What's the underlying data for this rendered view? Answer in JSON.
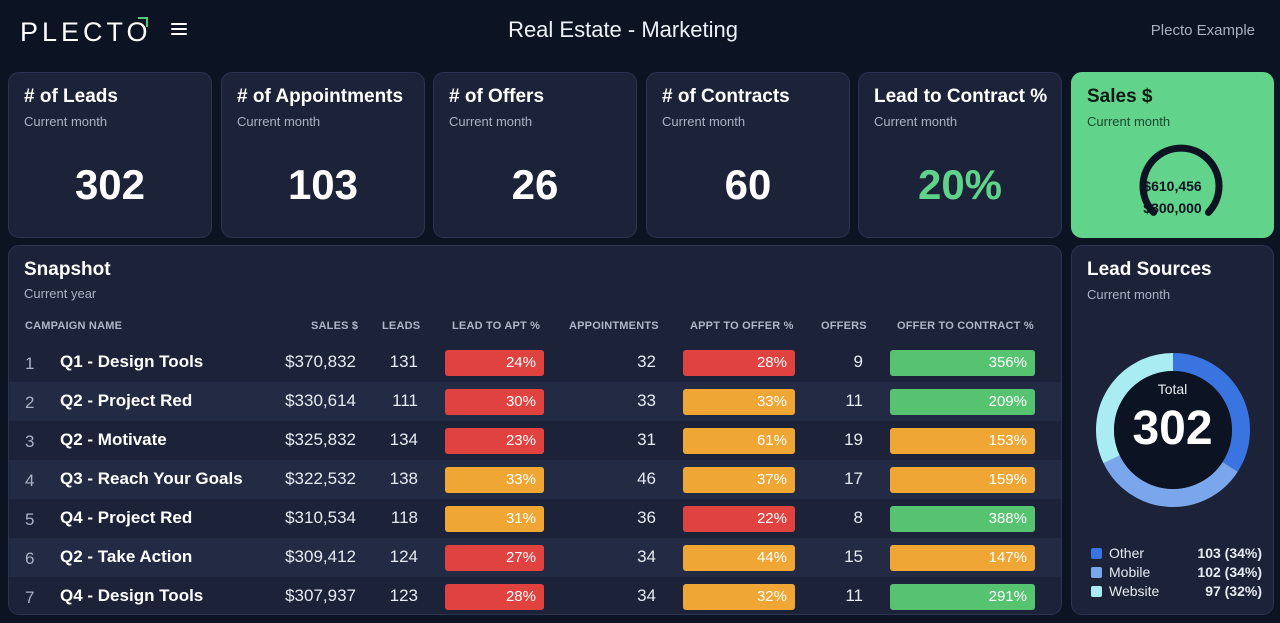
{
  "header": {
    "logo": "PLECTO",
    "title": "Real Estate - Marketing",
    "account": "Plecto Example"
  },
  "kpis": [
    {
      "title": "# of Leads",
      "subtitle": "Current month",
      "value": "302"
    },
    {
      "title": "# of Appointments",
      "subtitle": "Current month",
      "value": "103"
    },
    {
      "title": "# of Offers",
      "subtitle": "Current month",
      "value": "26"
    },
    {
      "title": "# of Contracts",
      "subtitle": "Current month",
      "value": "60"
    },
    {
      "title": "Lead to Contract %",
      "subtitle": "Current month",
      "value": "20%"
    }
  ],
  "sales": {
    "title": "Sales $",
    "subtitle": "Current month",
    "value": "$610,456",
    "target": "$300,000",
    "progress": 1.0
  },
  "snapshot": {
    "title": "Snapshot",
    "subtitle": "Current year",
    "columns": [
      "CAMPAIGN NAME",
      "SALES $",
      "LEADS",
      "LEAD TO APT %",
      "APPOINTMENTS",
      "APPT TO OFFER %",
      "OFFERS",
      "OFFER TO CONTRACT %"
    ],
    "rows": [
      {
        "rank": "1",
        "name": "Q1 - Design Tools",
        "sales": "$370,832",
        "leads": "131",
        "lead_to_apt": "24%",
        "lead_to_apt_status": "red",
        "appointments": "32",
        "appt_to_offer": "28%",
        "appt_to_offer_status": "red",
        "offers": "9",
        "offer_to_contract": "356%",
        "offer_to_contract_status": "green"
      },
      {
        "rank": "2",
        "name": "Q2 - Project Red",
        "sales": "$330,614",
        "leads": "111",
        "lead_to_apt": "30%",
        "lead_to_apt_status": "red",
        "appointments": "33",
        "appt_to_offer": "33%",
        "appt_to_offer_status": "orange",
        "offers": "11",
        "offer_to_contract": "209%",
        "offer_to_contract_status": "green"
      },
      {
        "rank": "3",
        "name": "Q2 - Motivate",
        "sales": "$325,832",
        "leads": "134",
        "lead_to_apt": "23%",
        "lead_to_apt_status": "red",
        "appointments": "31",
        "appt_to_offer": "61%",
        "appt_to_offer_status": "orange",
        "offers": "19",
        "offer_to_contract": "153%",
        "offer_to_contract_status": "orange"
      },
      {
        "rank": "4",
        "name": "Q3 - Reach Your Goals",
        "sales": "$322,532",
        "leads": "138",
        "lead_to_apt": "33%",
        "lead_to_apt_status": "orange",
        "appointments": "46",
        "appt_to_offer": "37%",
        "appt_to_offer_status": "orange",
        "offers": "17",
        "offer_to_contract": "159%",
        "offer_to_contract_status": "orange"
      },
      {
        "rank": "5",
        "name": "Q4 - Project Red",
        "sales": "$310,534",
        "leads": "118",
        "lead_to_apt": "31%",
        "lead_to_apt_status": "orange",
        "appointments": "36",
        "appt_to_offer": "22%",
        "appt_to_offer_status": "red",
        "offers": "8",
        "offer_to_contract": "388%",
        "offer_to_contract_status": "green"
      },
      {
        "rank": "6",
        "name": "Q2 - Take Action",
        "sales": "$309,412",
        "leads": "124",
        "lead_to_apt": "27%",
        "lead_to_apt_status": "red",
        "appointments": "34",
        "appt_to_offer": "44%",
        "appt_to_offer_status": "orange",
        "offers": "15",
        "offer_to_contract": "147%",
        "offer_to_contract_status": "orange"
      },
      {
        "rank": "7",
        "name": "Q4 - Design Tools",
        "sales": "$307,937",
        "leads": "123",
        "lead_to_apt": "28%",
        "lead_to_apt_status": "red",
        "appointments": "34",
        "appt_to_offer": "32%",
        "appt_to_offer_status": "orange",
        "offers": "11",
        "offer_to_contract": "291%",
        "offer_to_contract_status": "green"
      }
    ]
  },
  "lead_sources": {
    "title": "Lead Sources",
    "subtitle": "Current month",
    "total_label": "Total",
    "total_value": "302",
    "items": [
      {
        "name": "Other",
        "value": "103 (34%)",
        "count": 103,
        "color": "#3a74e0"
      },
      {
        "name": "Mobile",
        "value": "102 (34%)",
        "count": 102,
        "color": "#7aa7ec"
      },
      {
        "name": "Website",
        "value": "97 (32%)",
        "count": 97,
        "color": "#a9ecf2"
      }
    ]
  },
  "colors": {
    "background": "#0c1322",
    "card": "#1c2339",
    "accent_green": "#62d38a",
    "status_red": "#e0433f",
    "status_orange": "#f0a634",
    "status_green": "#55c370"
  }
}
